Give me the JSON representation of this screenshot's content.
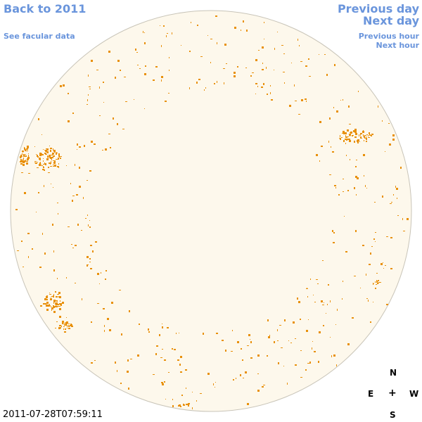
{
  "nav": {
    "back_label": "Back to 2011",
    "facular_label": "See facular data",
    "prev_day_label": "Previous day",
    "next_day_label": "Next day",
    "prev_hour_label": "Previous hour",
    "next_hour_label": "Next hour"
  },
  "compass": {
    "north": "N",
    "east": "E",
    "center": "+",
    "west": "W",
    "south": "S"
  },
  "timestamp": "2011-07-28T07:59:11",
  "colors": {
    "link": "#6a95dc",
    "disk_fill": "#fdf8ec",
    "disk_outline": "#c8c4b8",
    "facula": "#e8900a"
  }
}
